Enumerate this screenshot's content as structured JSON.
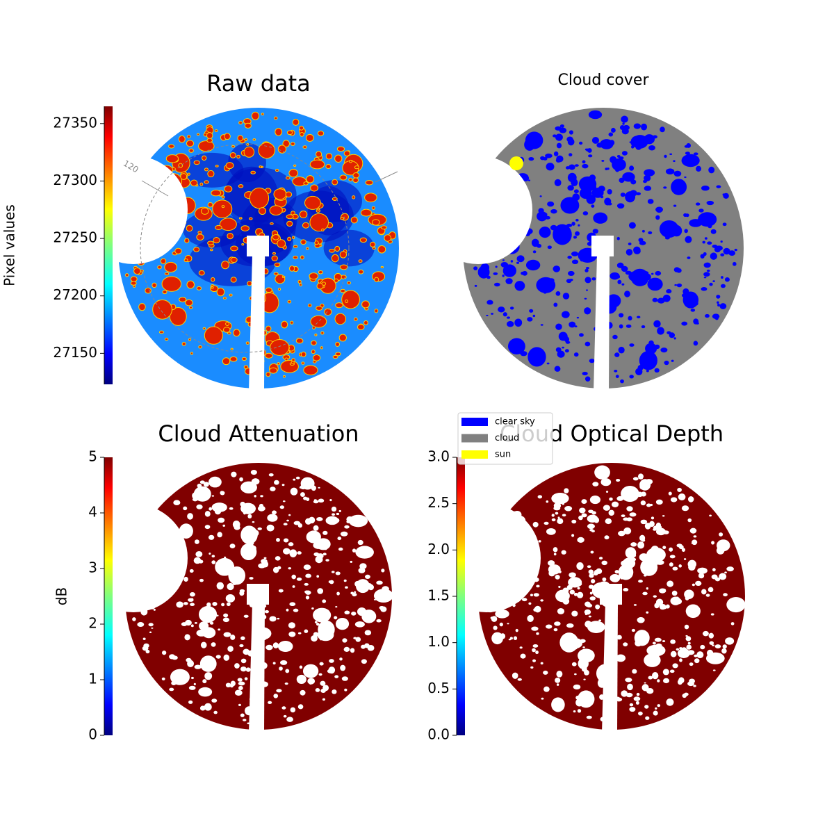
{
  "chart_data": [
    {
      "type": "image",
      "title": "Raw data",
      "annotations": [
        "120"
      ],
      "colorbar": {
        "label": "Pixel values",
        "lim": [
          27123,
          27365
        ],
        "ticks": [
          27150,
          27200,
          27250,
          27300,
          27350
        ],
        "colormap": "jet"
      }
    },
    {
      "type": "image",
      "title": "Cloud cover",
      "series": [
        {
          "name": "clear sky",
          "color": "#0000ff"
        },
        {
          "name": "cloud",
          "color": "#808080"
        },
        {
          "name": "sun",
          "color": "#ffff00"
        }
      ]
    },
    {
      "type": "image",
      "title": "Cloud Attenuation",
      "colorbar": {
        "label": "dB",
        "lim": [
          0,
          5
        ],
        "ticks": [
          0,
          1,
          2,
          3,
          4,
          5
        ],
        "colormap": "jet"
      }
    },
    {
      "type": "image",
      "title": "Cloud Optical Depth",
      "colorbar": {
        "lim": [
          0,
          3
        ],
        "ticks": [
          {
            "value": 0,
            "label": "0.0"
          },
          {
            "value": 0.5,
            "label": "0.5"
          },
          {
            "value": 1,
            "label": "1.0"
          },
          {
            "value": 1.5,
            "label": "1.5"
          },
          {
            "value": 2,
            "label": "2.0"
          },
          {
            "value": 2.5,
            "label": "2.5"
          },
          {
            "value": 3,
            "label": "3.0"
          }
        ],
        "colormap": "jet"
      }
    }
  ]
}
